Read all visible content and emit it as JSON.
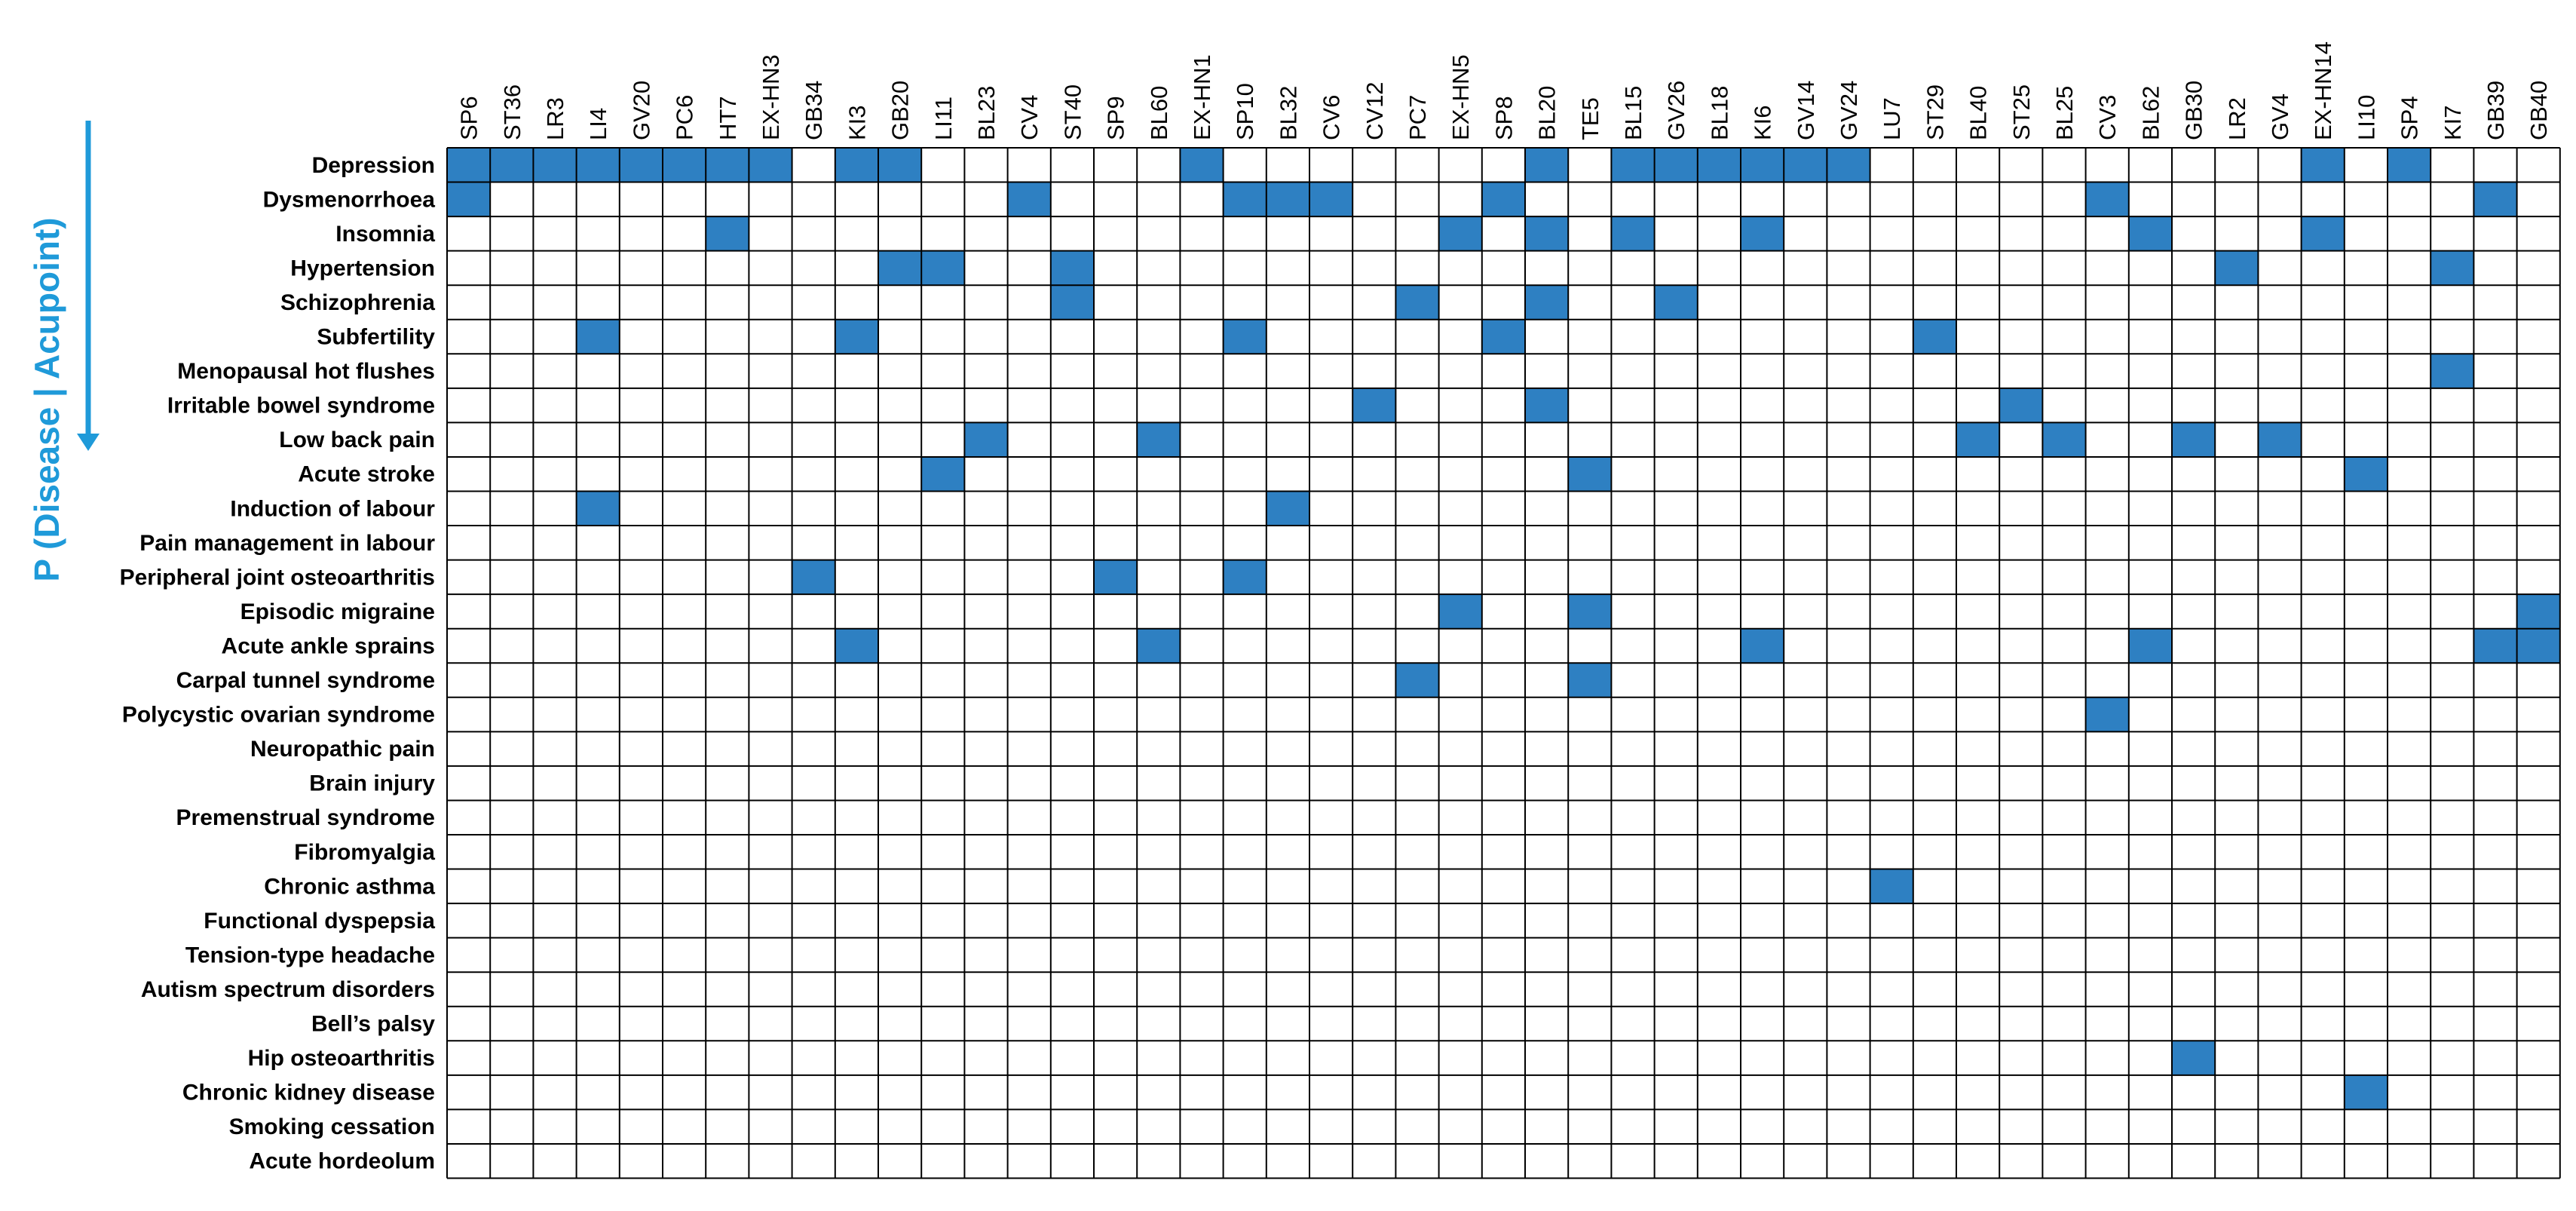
{
  "chart_data": {
    "type": "heatmap",
    "ylabel": "P (Disease | Acupoint)",
    "fill_color": "#2e80c2",
    "empty_color": "#ffffff",
    "axis_color": "#1f9ad9",
    "grid": true,
    "columns": [
      "SP6",
      "ST36",
      "LR3",
      "LI4",
      "GV20",
      "PC6",
      "HT7",
      "EX-HN3",
      "GB34",
      "KI3",
      "GB20",
      "LI11",
      "BL23",
      "CV4",
      "ST40",
      "SP9",
      "BL60",
      "EX-HN1",
      "SP10",
      "BL32",
      "CV6",
      "CV12",
      "PC7",
      "EX-HN5",
      "SP8",
      "BL20",
      "TE5",
      "BL15",
      "GV26",
      "BL18",
      "KI6",
      "GV14",
      "GV24",
      "LU7",
      "ST29",
      "BL40",
      "ST25",
      "BL25",
      "CV3",
      "BL62",
      "GB30",
      "LR2",
      "GV4",
      "EX-HN14",
      "LI10",
      "SP4",
      "KI7",
      "GB39",
      "GB40"
    ],
    "rows": [
      "Depression",
      "Dysmenorrhoea",
      "Insomnia",
      "Hypertension",
      "Schizophrenia",
      "Subfertility",
      "Menopausal hot flushes",
      "Irritable bowel syndrome",
      "Low back pain",
      "Acute stroke",
      "Induction of labour",
      "Pain management in labour",
      "Peripheral joint osteoarthritis",
      "Episodic migraine",
      "Acute ankle sprains",
      "Carpal tunnel syndrome",
      "Polycystic ovarian syndrome",
      "Neuropathic pain",
      "Brain injury",
      "Premenstrual syndrome",
      "Fibromyalgia",
      "Chronic asthma",
      "Functional dyspepsia",
      "Tension-type headache",
      "Autism spectrum disorders",
      "Bell’s palsy",
      "Hip osteoarthritis",
      "Chronic kidney disease",
      "Smoking cessation",
      "Acute hordeolum"
    ],
    "filled": {
      "Depression": [
        "SP6",
        "ST36",
        "LR3",
        "LI4",
        "GV20",
        "PC6",
        "HT7",
        "EX-HN3",
        "KI3",
        "GB20",
        "EX-HN1",
        "BL20",
        "BL15",
        "GV26",
        "BL18",
        "KI6",
        "GV14",
        "GV24",
        "EX-HN14",
        "SP4"
      ],
      "Dysmenorrhoea": [
        "SP6",
        "CV4",
        "SP10",
        "BL32",
        "CV6",
        "SP8",
        "CV3",
        "GB39"
      ],
      "Insomnia": [
        "HT7",
        "EX-HN5",
        "BL20",
        "BL15",
        "KI6",
        "BL62",
        "EX-HN14"
      ],
      "Hypertension": [
        "GB20",
        "LI11",
        "ST40",
        "LR2",
        "KI7"
      ],
      "Schizophrenia": [
        "ST40",
        "PC7",
        "BL20",
        "GV26"
      ],
      "Subfertility": [
        "LI4",
        "KI3",
        "SP10",
        "SP8",
        "ST29"
      ],
      "Menopausal hot flushes": [
        "KI7"
      ],
      "Irritable bowel syndrome": [
        "CV12",
        "BL20",
        "ST25"
      ],
      "Low back pain": [
        "BL23",
        "BL60",
        "BL40",
        "BL25",
        "GB30",
        "GV4"
      ],
      "Acute stroke": [
        "LI11",
        "TE5",
        "LI10"
      ],
      "Induction of labour": [
        "LI4",
        "BL32"
      ],
      "Pain management in labour": [],
      "Peripheral joint osteoarthritis": [
        "GB34",
        "SP9",
        "SP10"
      ],
      "Episodic migraine": [
        "EX-HN5",
        "TE5",
        "GB40"
      ],
      "Acute ankle sprains": [
        "KI3",
        "BL60",
        "KI6",
        "BL62",
        "GB39",
        "GB40"
      ],
      "Carpal tunnel syndrome": [
        "PC7",
        "TE5"
      ],
      "Polycystic ovarian syndrome": [
        "CV3"
      ],
      "Neuropathic pain": [],
      "Brain injury": [],
      "Premenstrual syndrome": [],
      "Fibromyalgia": [],
      "Chronic asthma": [
        "LU7"
      ],
      "Functional dyspepsia": [],
      "Tension-type headache": [],
      "Autism spectrum disorders": [],
      "Bell’s palsy": [],
      "Hip osteoarthritis": [
        "GB30"
      ],
      "Chronic kidney disease": [
        "LI10"
      ],
      "Smoking cessation": [],
      "Acute hordeolum": []
    }
  }
}
